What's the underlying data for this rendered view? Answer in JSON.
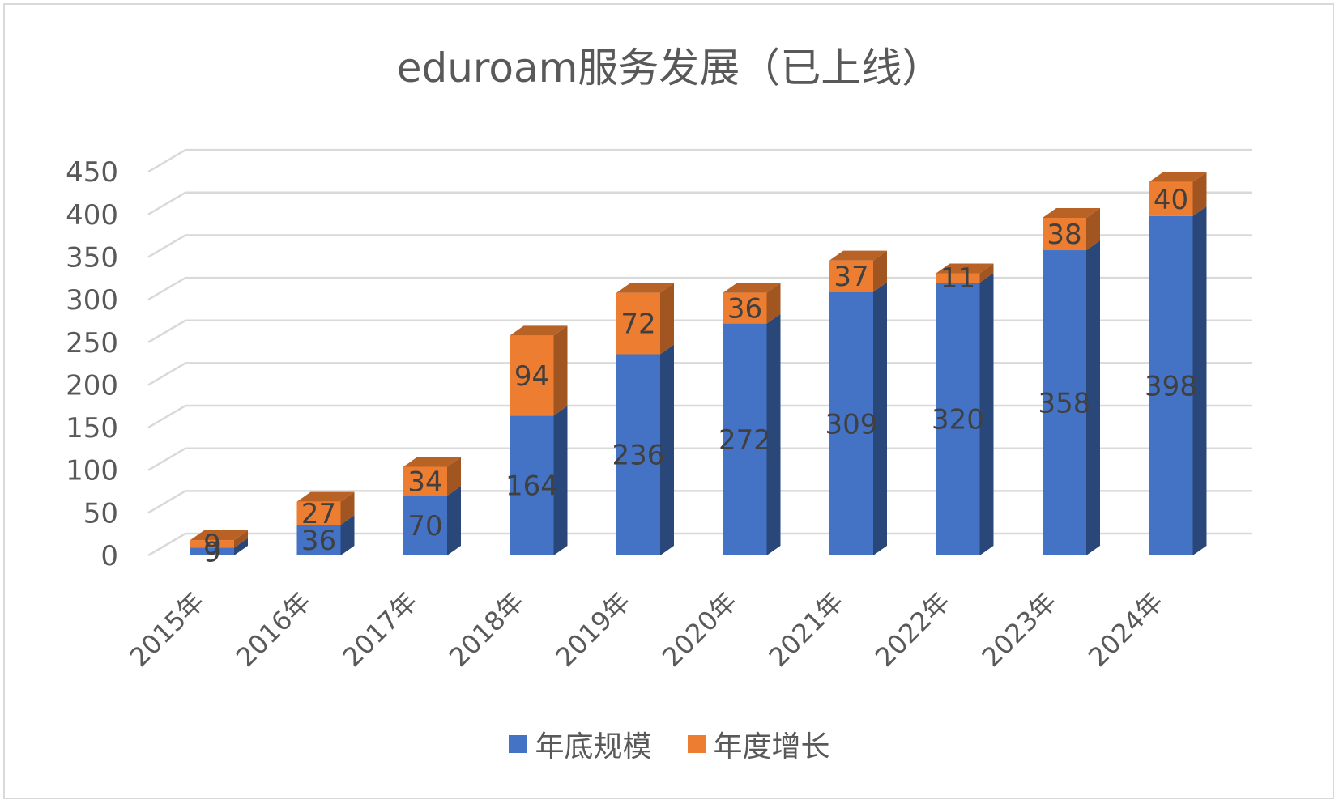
{
  "chart_data": {
    "type": "bar",
    "stacked": true,
    "three_d": true,
    "title": "eduroam服务发展（已上线）",
    "xlabel": "",
    "ylabel": "",
    "ylim": [
      0,
      450
    ],
    "y_ticks": [
      "0",
      "50",
      "100",
      "150",
      "200",
      "250",
      "300",
      "350",
      "400",
      "450"
    ],
    "grid": true,
    "legend_position": "bottom",
    "categories": [
      "2015年",
      "2016年",
      "2017年",
      "2018年",
      "2019年",
      "2020年",
      "2021年",
      "2022年",
      "2023年",
      "2024年"
    ],
    "series": [
      {
        "name": "年底规模",
        "color": "#4472C4",
        "values": [
          9,
          36,
          70,
          164,
          236,
          272,
          309,
          320,
          358,
          398
        ]
      },
      {
        "name": "年度增长",
        "color": "#ED7D31",
        "values": [
          9,
          27,
          34,
          94,
          72,
          36,
          37,
          11,
          38,
          40
        ]
      }
    ]
  }
}
